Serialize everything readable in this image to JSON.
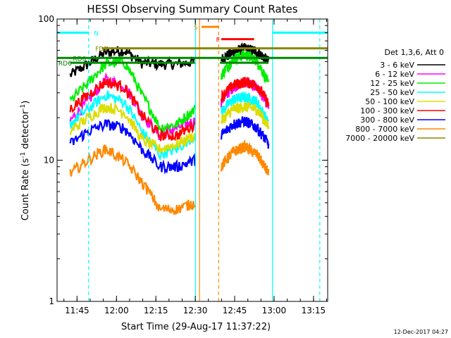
{
  "chart_data": {
    "type": "line",
    "title": "HESSI Observing Summary Count Rates",
    "xlabel": "Start Time (29-Aug-17 11:37:22)",
    "ylabel": "Count Rate (s",
    "ylabel_sup": "-1",
    "ylabel_mid": " detector",
    "ylabel_tail": ")",
    "yscale": "log",
    "ylim": [
      1,
      100
    ],
    "xlim_minutes": [
      0,
      103
    ],
    "yticks": [
      {
        "label": "1",
        "v": 1
      },
      {
        "label": "10",
        "v": 10
      },
      {
        "label": "100",
        "v": 100
      }
    ],
    "xticks": [
      {
        "label": "11:45",
        "m": 7.6
      },
      {
        "label": "12:00",
        "m": 22.6
      },
      {
        "label": "12:15",
        "m": 37.6
      },
      {
        "label": "12:30",
        "m": 52.6
      },
      {
        "label": "12:45",
        "m": 67.6
      },
      {
        "label": "13:00",
        "m": 82.6
      },
      {
        "label": "13:15",
        "m": 97.6
      }
    ],
    "legend_title": "Det 1,3,6, Att 0",
    "legend_position": "right",
    "segments": [
      [
        5,
        52.5
      ],
      [
        62.5,
        80.5
      ]
    ],
    "series": [
      {
        "name": "3 - 6 keV",
        "color": "#000000",
        "a": [
          40,
          48,
          58,
          60,
          49,
          48,
          48,
          50
        ],
        "b": [
          52,
          58,
          62,
          59,
          50
        ]
      },
      {
        "name": "6 - 12 keV",
        "color": "#ff00ff",
        "a": [
          19,
          26,
          37,
          34,
          21,
          15,
          17,
          19
        ],
        "b": [
          26,
          33,
          36,
          33,
          24
        ]
      },
      {
        "name": "12 - 25 keV",
        "color": "#00ee00",
        "a": [
          26,
          35,
          48,
          50,
          29,
          17,
          18,
          23
        ],
        "b": [
          40,
          52,
          56,
          51,
          34
        ]
      },
      {
        "name": "25 - 50 keV",
        "color": "#00ffff",
        "a": [
          18,
          23,
          29,
          26,
          16,
          11,
          12,
          15
        ],
        "b": [
          22,
          27,
          28,
          26,
          18
        ]
      },
      {
        "name": "50 - 100 keV",
        "color": "#dddd00",
        "a": [
          16,
          20,
          24,
          22,
          14,
          12,
          13,
          15
        ],
        "b": [
          19,
          23,
          24,
          23,
          17
        ]
      },
      {
        "name": "100 - 300 keV",
        "color": "#ff0000",
        "a": [
          23,
          29,
          36,
          33,
          21,
          15,
          15,
          18
        ],
        "b": [
          28,
          34,
          36,
          34,
          25
        ]
      },
      {
        "name": "300 - 800 keV",
        "color": "#0000ff",
        "a": [
          13,
          16,
          18,
          17,
          12,
          9,
          9,
          10
        ],
        "b": [
          15,
          18,
          19,
          17,
          13
        ]
      },
      {
        "name": "800 - 7000 keV",
        "color": "#ff8800",
        "a": [
          8,
          10,
          12,
          10,
          7,
          4.5,
          4.5,
          5
        ],
        "b": [
          9,
          11.5,
          12.5,
          11,
          8
        ]
      },
      {
        "name": "7000 - 20000 keV",
        "color": "#888800",
        "a": [],
        "b": []
      }
    ],
    "annotations": [
      {
        "label": "N",
        "color": "#00ffff",
        "y": 80,
        "m0": 0,
        "m1": 12,
        "lx": 14
      },
      {
        "label": "N",
        "color": "#00ffff",
        "y": 80,
        "m0": 82,
        "m1": 103,
        "lx": -1
      },
      {
        "label": "FD2",
        "color": "#888800",
        "y": 62,
        "m0": 17,
        "m1": 103,
        "lx": 14.5
      },
      {
        "label": "RD0",
        "color": "#008800",
        "y": 53,
        "m0": 0,
        "m1": 103,
        "lx": 6
      },
      {
        "label": "RD6",
        "color": "#008800",
        "y": 49,
        "m0": 5,
        "m1": 52.5,
        "lx": 0.5
      },
      {
        "label": "RD6",
        "color": "#008800",
        "y": 49,
        "m0": 62,
        "m1": 80.5,
        "lx": -1
      },
      {
        "label": "S",
        "color": "#ff8800",
        "y": 88,
        "m0": 55,
        "m1": 61.5,
        "lx": 52
      },
      {
        "label": "F",
        "color": "#ff0000",
        "y": 72,
        "m0": 62.5,
        "m1": 75,
        "lx": 60.5
      }
    ],
    "vlines": [
      {
        "m": 12.0,
        "color": "#00ffff",
        "dash": true
      },
      {
        "m": 52.7,
        "color": "#00ffff",
        "dash": false
      },
      {
        "m": 54.2,
        "color": "#ff8800",
        "dash": false
      },
      {
        "m": 61.5,
        "color": "#ff8800",
        "dash": true
      },
      {
        "m": 82.0,
        "color": "#00ffff",
        "dash": false
      },
      {
        "m": 100.0,
        "color": "#00ffff",
        "dash": true
      }
    ]
  },
  "footer_timestamp": "12-Dec-2017 04:27"
}
